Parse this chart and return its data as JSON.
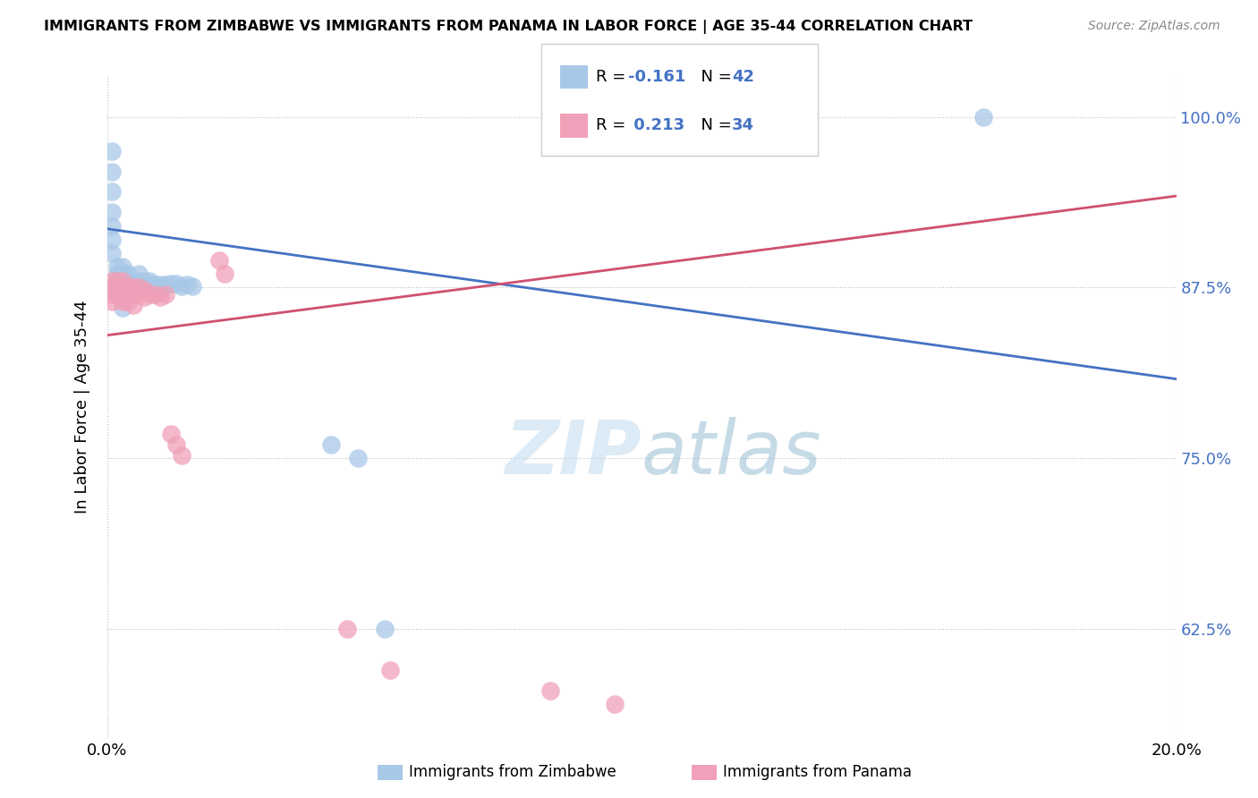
{
  "title": "IMMIGRANTS FROM ZIMBABWE VS IMMIGRANTS FROM PANAMA IN LABOR FORCE | AGE 35-44 CORRELATION CHART",
  "source": "Source: ZipAtlas.com",
  "ylabel": "In Labor Force | Age 35-44",
  "yticks": [
    0.625,
    0.75,
    0.875,
    1.0
  ],
  "ytick_labels": [
    "62.5%",
    "75.0%",
    "87.5%",
    "100.0%"
  ],
  "xlim": [
    0.0,
    0.2
  ],
  "ylim": [
    0.545,
    1.03
  ],
  "watermark": "ZIPatlas",
  "legend_r_zimbabwe": "-0.161",
  "legend_n_zimbabwe": "42",
  "legend_r_panama": "0.213",
  "legend_n_panama": "34",
  "zimbabwe_color": "#a8c8e8",
  "panama_color": "#f0a0b8",
  "zimbabwe_line_color": "#4472c4",
  "panama_line_color": "#d05070",
  "zim_line_x0": 0.0,
  "zim_line_y0": 0.918,
  "zim_line_x1": 0.2,
  "zim_line_y1": 0.808,
  "pan_line_x0": 0.0,
  "pan_line_y0": 0.84,
  "pan_line_x1": 0.2,
  "pan_line_y1": 0.942,
  "zimbabwe_x": [
    0.001,
    0.001,
    0.001,
    0.001,
    0.001,
    0.001,
    0.001,
    0.002,
    0.002,
    0.002,
    0.002,
    0.002,
    0.003,
    0.003,
    0.003,
    0.003,
    0.004,
    0.004,
    0.004,
    0.005,
    0.005,
    0.006,
    0.006,
    0.006,
    0.007,
    0.007,
    0.008,
    0.008,
    0.009,
    0.01,
    0.01,
    0.011,
    0.012,
    0.013,
    0.014,
    0.015,
    0.016,
    0.042,
    0.047,
    0.052,
    0.164,
    0.003
  ],
  "zimbabwe_y": [
    0.975,
    0.96,
    0.945,
    0.93,
    0.92,
    0.91,
    0.9,
    0.89,
    0.885,
    0.88,
    0.875,
    0.87,
    0.89,
    0.885,
    0.88,
    0.875,
    0.885,
    0.88,
    0.875,
    0.88,
    0.875,
    0.885,
    0.88,
    0.875,
    0.88,
    0.875,
    0.88,
    0.875,
    0.877,
    0.877,
    0.872,
    0.877,
    0.878,
    0.878,
    0.876,
    0.877,
    0.876,
    0.76,
    0.75,
    0.625,
    1.0,
    0.86
  ],
  "panama_x": [
    0.001,
    0.001,
    0.001,
    0.001,
    0.002,
    0.002,
    0.002,
    0.003,
    0.003,
    0.003,
    0.003,
    0.004,
    0.004,
    0.004,
    0.005,
    0.005,
    0.005,
    0.006,
    0.006,
    0.007,
    0.007,
    0.008,
    0.009,
    0.01,
    0.011,
    0.012,
    0.013,
    0.014,
    0.021,
    0.022,
    0.045,
    0.053,
    0.083,
    0.095
  ],
  "panama_y": [
    0.88,
    0.875,
    0.87,
    0.865,
    0.88,
    0.875,
    0.87,
    0.88,
    0.875,
    0.87,
    0.865,
    0.875,
    0.87,
    0.865,
    0.875,
    0.87,
    0.862,
    0.875,
    0.87,
    0.873,
    0.868,
    0.87,
    0.87,
    0.868,
    0.87,
    0.768,
    0.76,
    0.752,
    0.895,
    0.885,
    0.625,
    0.595,
    0.58,
    0.57
  ]
}
